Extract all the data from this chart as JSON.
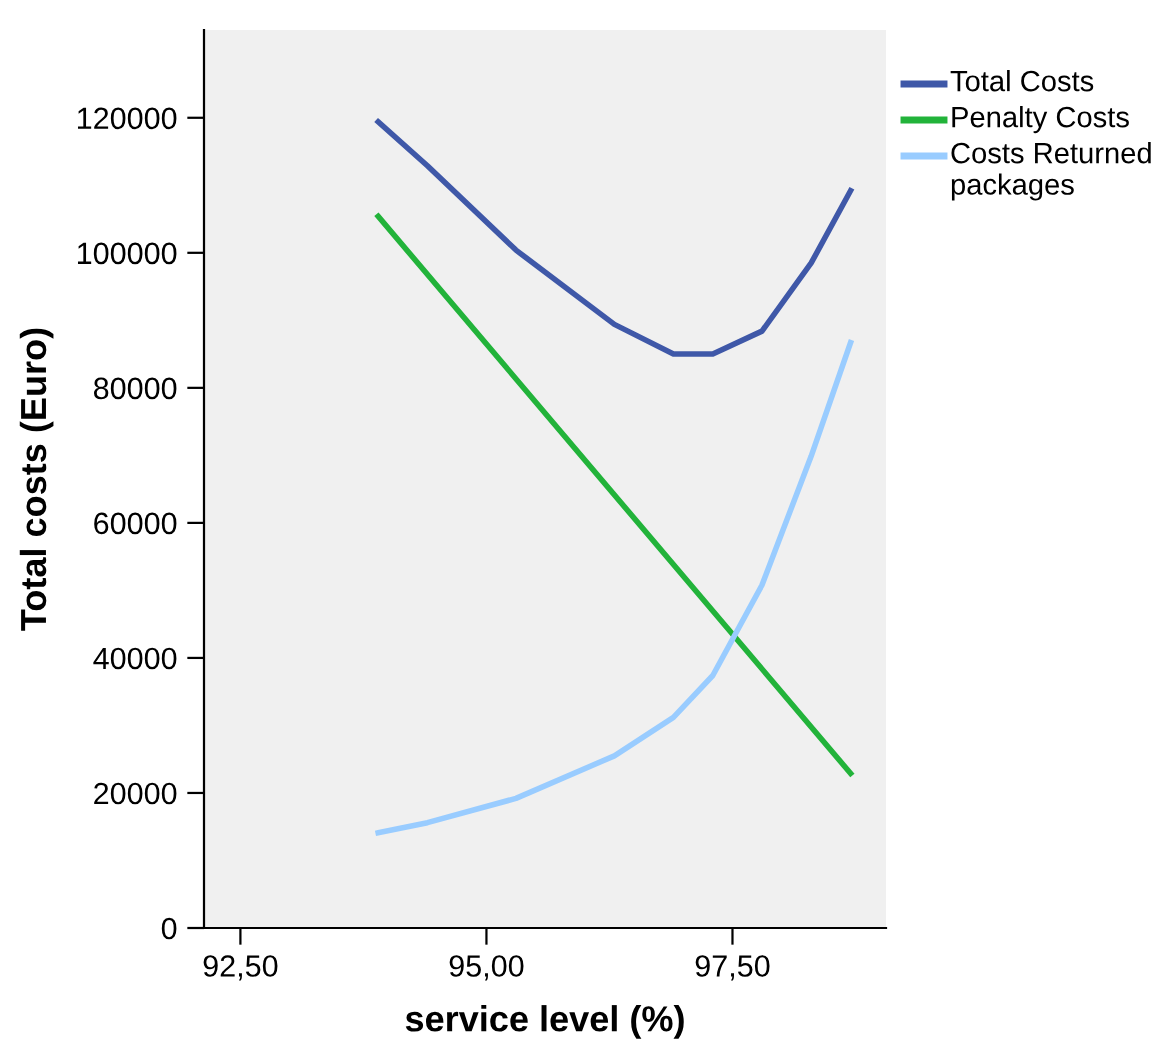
{
  "chart_data": {
    "type": "line",
    "xlabel": "service level (%)",
    "ylabel": "Total costs (Euro)",
    "x": [
      93.9,
      94.4,
      95.3,
      96.3,
      96.9,
      97.3,
      97.8,
      98.3,
      98.7
    ],
    "series": [
      {
        "name": "Total Costs",
        "color": "#3f58a8",
        "values": [
          119400,
          112900,
          100400,
          89400,
          85000,
          85000,
          88400,
          98500,
          109200
        ]
      },
      {
        "name": "Penalty Costs",
        "color": "#22b33a",
        "x": [
          93.9,
          98.7
        ],
        "values": [
          105400,
          22900
        ]
      },
      {
        "name": "Costs Returned packages",
        "color": "#99ccff",
        "values": [
          14100,
          15600,
          19200,
          25500,
          31200,
          37400,
          50800,
          69900,
          86700
        ]
      }
    ],
    "xlim": [
      92.13,
      99.06
    ],
    "xticks": [
      {
        "value": 92.5,
        "label": "92,50"
      },
      {
        "value": 95,
        "label": "95,00"
      },
      {
        "value": 97.5,
        "label": "97,50"
      }
    ],
    "ylim": [
      0,
      133000
    ],
    "yticks": [
      0,
      20000,
      40000,
      60000,
      80000,
      100000,
      120000
    ],
    "grid": false,
    "legend": "top right"
  }
}
